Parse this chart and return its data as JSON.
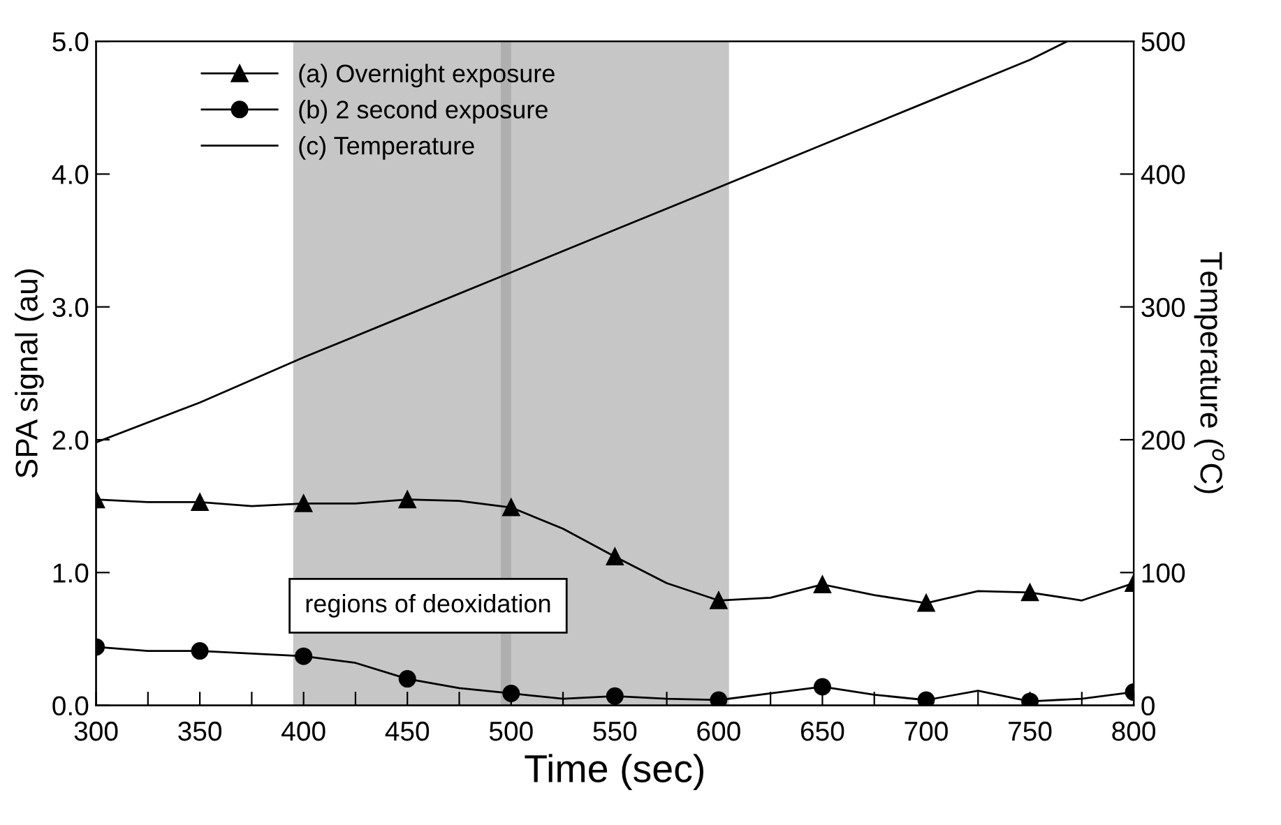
{
  "chart_data": {
    "type": "line",
    "xlabel": "Time (sec)",
    "ylabel": "SPA signal (au)",
    "y2label": "Temperature ($^{o}$C)",
    "x": [
      300,
      325,
      350,
      375,
      400,
      425,
      450,
      475,
      500,
      525,
      550,
      575,
      600,
      625,
      650,
      675,
      700,
      725,
      750,
      775,
      800
    ],
    "series": [
      {
        "name": "(a) Overnight exposure",
        "color": "#000000",
        "marker": "triangle",
        "values": [
          1.55,
          1.53,
          1.53,
          1.5,
          1.52,
          1.52,
          1.55,
          1.54,
          1.49,
          1.33,
          1.12,
          0.92,
          0.79,
          0.81,
          0.91,
          0.83,
          0.77,
          0.86,
          0.85,
          0.79,
          0.92
        ]
      },
      {
        "name": "(b) 2 second exposure",
        "color": "#000000",
        "marker": "circle",
        "values": [
          0.44,
          0.41,
          0.41,
          0.39,
          0.37,
          0.32,
          0.2,
          0.13,
          0.09,
          0.05,
          0.07,
          0.05,
          0.04,
          0.09,
          0.14,
          0.08,
          0.04,
          0.11,
          0.03,
          0.05,
          0.1
        ]
      },
      {
        "name": "(c) Temperature",
        "color": "#000000",
        "marker": "none",
        "axis": "y2",
        "x": [
          300,
          350,
          400,
          450,
          500,
          550,
          600,
          650,
          700,
          750,
          768
        ],
        "values": [
          198,
          228,
          262,
          294,
          326,
          358,
          390,
          422,
          454,
          486,
          500
        ]
      }
    ],
    "xlim": [
      300,
      800
    ],
    "xticks": [
      300,
      {
        "value": 325,
        "label": null
      },
      350,
      {
        "value": 375,
        "label": null
      },
      400,
      {
        "value": 425,
        "label": null
      },
      450,
      {
        "value": 475,
        "label": null
      },
      500,
      {
        "value": 525,
        "label": null
      },
      550,
      {
        "value": 575,
        "label": null
      },
      600,
      {
        "value": 625,
        "label": null
      },
      650,
      {
        "value": 675,
        "label": null
      },
      700,
      {
        "value": 725,
        "label": null
      },
      750,
      {
        "value": 775,
        "label": null
      },
      800
    ],
    "ylim": [
      0,
      5
    ],
    "yticks": [
      {
        "value": 0,
        "label": "0.0"
      },
      {
        "value": 1,
        "label": "1.0"
      },
      {
        "value": 2,
        "label": "2.0"
      },
      {
        "value": 3,
        "label": "3.0"
      },
      {
        "value": 4,
        "label": "4.0"
      },
      {
        "value": 5,
        "label": "5.0"
      }
    ],
    "y2lim": [
      0,
      500
    ],
    "y2ticks": [
      0,
      100,
      200,
      300,
      400,
      500
    ],
    "bands": [
      {
        "axis": "x",
        "from": 395,
        "to": 500,
        "color": "#a0a0a0"
      },
      {
        "axis": "x",
        "from": 495,
        "to": 605,
        "color": "#a0a0a0"
      }
    ],
    "annotations": [
      "regions of deoxidation"
    ],
    "legend": "top left",
    "grid": false,
    "line_style": "solid"
  }
}
